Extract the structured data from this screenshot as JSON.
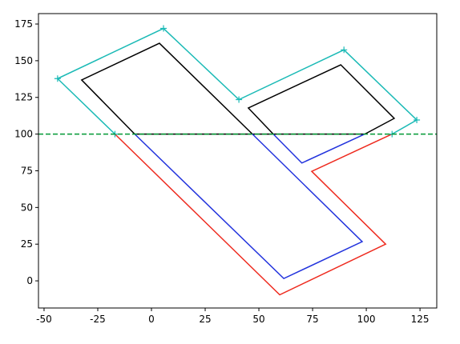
{
  "chart_data": {
    "type": "line",
    "xlim": [
      -52.6,
      132.8
    ],
    "ylim": [
      -18.5,
      182.1
    ],
    "xticks": [
      -50,
      -25,
      0,
      25,
      50,
      75,
      100,
      125
    ],
    "yticks": [
      0,
      25,
      50,
      75,
      100,
      125,
      150,
      175
    ],
    "grid": false,
    "series": [
      {
        "color": "#000000",
        "marker": null,
        "x": [
          -7.8,
          -32.5,
          3.7,
          47,
          null,
          56.7,
          45.1,
          88.1,
          113,
          99.3,
          null,
          -7.8,
          99.3
        ],
        "values": [
          100,
          136.9,
          161.9,
          100,
          null,
          100,
          117.8,
          147.2,
          110.7,
          100,
          null,
          100,
          100
        ]
      },
      {
        "color": "#2233dd",
        "marker": null,
        "x": [
          -7.8,
          61.6,
          98.1,
          47,
          null,
          56.7,
          70,
          99.3
        ],
        "values": [
          100,
          1.6,
          26.7,
          100,
          null,
          100,
          80.3,
          100
        ]
      },
      {
        "color": "#ee2a1e",
        "marker": null,
        "x": [
          -17,
          59.7,
          109,
          74.6,
          112
        ],
        "values": [
          100,
          -9.5,
          25,
          74.6,
          100
        ]
      },
      {
        "color": "#1bbab6",
        "marker": "+",
        "x": [
          -17,
          -43.7,
          5.6,
          40.7,
          89.6,
          123.5,
          112
        ],
        "values": [
          100,
          137.8,
          172,
          123.5,
          157.4,
          109.6,
          100
        ]
      }
    ],
    "hlines": [
      {
        "y": 100,
        "color": "#009933",
        "style": "dashed"
      }
    ]
  }
}
